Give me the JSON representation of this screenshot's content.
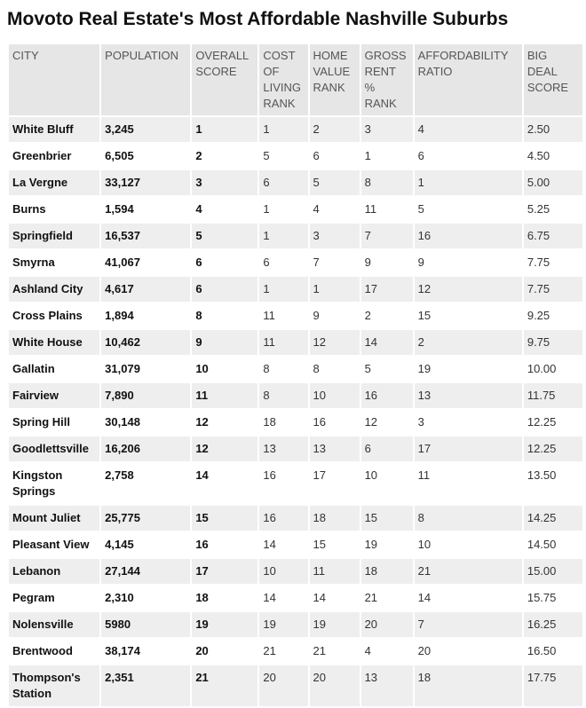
{
  "title": "Movoto Real Estate's Most Affordable Nashville Suburbs",
  "table": {
    "header": [
      "CITY",
      "POPULATION",
      "OVERALL SCORE",
      "COST OF LIVING RANK",
      "HOME VALUE RANK",
      "GROSS RENT % RANK",
      "AFFORDABILITY RATIO",
      "BIG DEAL SCORE"
    ],
    "rows": [
      [
        "White Bluff",
        "3,245",
        "1",
        "1",
        "2",
        "3",
        "4",
        "2.50"
      ],
      [
        "Greenbrier",
        "6,505",
        "2",
        "5",
        "6",
        "1",
        "6",
        "4.50"
      ],
      [
        "La Vergne",
        "33,127",
        "3",
        "6",
        "5",
        "8",
        "1",
        "5.00"
      ],
      [
        "Burns",
        "1,594",
        "4",
        "1",
        "4",
        "11",
        "5",
        "5.25"
      ],
      [
        "Springfield",
        "16,537",
        "5",
        "1",
        "3",
        "7",
        "16",
        "6.75"
      ],
      [
        "Smyrna",
        "41,067",
        "6",
        "6",
        "7",
        "9",
        "9",
        "7.75"
      ],
      [
        "Ashland City",
        "4,617",
        "6",
        "1",
        "1",
        "17",
        "12",
        "7.75"
      ],
      [
        "Cross Plains",
        "1,894",
        "8",
        "11",
        "9",
        "2",
        "15",
        "9.25"
      ],
      [
        "White House",
        "10,462",
        "9",
        "11",
        "12",
        "14",
        "2",
        "9.75"
      ],
      [
        "Gallatin",
        "31,079",
        "10",
        "8",
        "8",
        "5",
        "19",
        "10.00"
      ],
      [
        "Fairview",
        "7,890",
        "11",
        "8",
        "10",
        "16",
        "13",
        "11.75"
      ],
      [
        "Spring Hill",
        "30,148",
        "12",
        "18",
        "16",
        "12",
        "3",
        "12.25"
      ],
      [
        "Goodlettsville",
        "16,206",
        "12",
        "13",
        "13",
        "6",
        "17",
        "12.25"
      ],
      [
        "Kingston Springs",
        "2,758",
        "14",
        "16",
        "17",
        "10",
        "11",
        "13.50"
      ],
      [
        "Mount Juliet",
        "25,775",
        "15",
        "16",
        "18",
        "15",
        "8",
        "14.25"
      ],
      [
        "Pleasant View",
        "4,145",
        "16",
        "14",
        "15",
        "19",
        "10",
        "14.50"
      ],
      [
        "Lebanon",
        "27,144",
        "17",
        "10",
        "11",
        "18",
        "21",
        "15.00"
      ],
      [
        "Pegram",
        "2,310",
        "18",
        "14",
        "14",
        "21",
        "14",
        "15.75"
      ],
      [
        "Nolensville",
        "5980",
        "19",
        "19",
        "19",
        "20",
        "7",
        "16.25"
      ],
      [
        "Brentwood",
        "38,174",
        "20",
        "21",
        "21",
        "4",
        "20",
        "16.50"
      ],
      [
        "Thompson's Station",
        "2,351",
        "21",
        "20",
        "20",
        "13",
        "18",
        "17.75"
      ]
    ]
  }
}
